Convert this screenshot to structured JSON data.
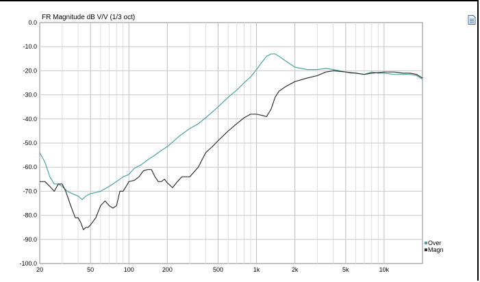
{
  "chart_data": {
    "type": "line",
    "title": "FR Magnitude dB V/V (1/3 oct)",
    "xscale": "log",
    "xlim": [
      20,
      20000
    ],
    "ylim": [
      -100,
      0
    ],
    "grid": true,
    "legend_position": "bottom-right",
    "x_tick_labels": [
      {
        "value": 20,
        "label": "20"
      },
      {
        "value": 50,
        "label": "50"
      },
      {
        "value": 100,
        "label": "100"
      },
      {
        "value": 200,
        "label": "200"
      },
      {
        "value": 500,
        "label": "500"
      },
      {
        "value": 1000,
        "label": "1k"
      },
      {
        "value": 2000,
        "label": "2k"
      },
      {
        "value": 5000,
        "label": "5k"
      },
      {
        "value": 10000,
        "label": "10k"
      }
    ],
    "y_tick_labels": [
      {
        "value": 0,
        "label": "0.0"
      },
      {
        "value": -10,
        "label": "-10.0"
      },
      {
        "value": -20,
        "label": "-20.0"
      },
      {
        "value": -30,
        "label": "-30.0"
      },
      {
        "value": -40,
        "label": "-40.0"
      },
      {
        "value": -50,
        "label": "-50.0"
      },
      {
        "value": -60,
        "label": "-60.0"
      },
      {
        "value": -70,
        "label": "-70.0"
      },
      {
        "value": -80,
        "label": "-80.0"
      },
      {
        "value": -90,
        "label": "-90.0"
      },
      {
        "value": -100,
        "label": "-100.0"
      }
    ],
    "series": [
      {
        "name": "Over",
        "color": "#4aa3a0",
        "x": [
          20,
          22,
          24,
          26,
          28,
          30,
          33,
          36,
          40,
          43,
          46,
          50,
          55,
          60,
          70,
          80,
          90,
          100,
          110,
          125,
          140,
          160,
          180,
          200,
          250,
          300,
          350,
          400,
          500,
          600,
          700,
          800,
          900,
          1000,
          1100,
          1200,
          1300,
          1400,
          1500,
          1700,
          2000,
          2500,
          3000,
          3500,
          4000,
          4500,
          5000,
          5500,
          6000,
          7000,
          8000,
          9000,
          10000,
          12000,
          14000,
          16000,
          18000,
          20000
        ],
        "y": [
          -54,
          -58,
          -64,
          -67,
          -67,
          -68,
          -70,
          -71,
          -72,
          -73.5,
          -72,
          -71,
          -70.5,
          -70,
          -68,
          -66,
          -64,
          -63,
          -60.5,
          -59,
          -57,
          -55,
          -53,
          -51.5,
          -47,
          -44,
          -42,
          -39.5,
          -35,
          -31,
          -28,
          -25,
          -22.5,
          -19.5,
          -16.5,
          -14,
          -13,
          -13,
          -14,
          -16,
          -18.5,
          -19.5,
          -19.5,
          -19,
          -19.5,
          -20,
          -20.5,
          -21,
          -21,
          -21.5,
          -20.5,
          -21,
          -21,
          -21.5,
          -21.5,
          -21.5,
          -22,
          -23.5
        ]
      },
      {
        "name": "Magn",
        "color": "#303030",
        "x": [
          20,
          22,
          24,
          26,
          28,
          30,
          32,
          35,
          38,
          40,
          42,
          44,
          46,
          48,
          50,
          55,
          60,
          65,
          70,
          75,
          80,
          85,
          90,
          95,
          100,
          110,
          120,
          130,
          140,
          150,
          160,
          170,
          180,
          190,
          200,
          220,
          240,
          260,
          300,
          350,
          400,
          450,
          500,
          600,
          700,
          800,
          900,
          1000,
          1100,
          1200,
          1300,
          1400,
          1500,
          1700,
          2000,
          2500,
          3000,
          3500,
          4000,
          5000,
          6000,
          7000,
          8000,
          10000,
          12000,
          14000,
          16000,
          18000,
          20000
        ],
        "y": [
          -66,
          -66,
          -68,
          -70,
          -67,
          -67,
          -70,
          -76,
          -81,
          -81,
          -83,
          -86,
          -85,
          -85,
          -84,
          -81,
          -76,
          -74,
          -76,
          -77,
          -76,
          -70,
          -70,
          -68,
          -66,
          -65.5,
          -64,
          -61.5,
          -61,
          -61,
          -64,
          -66,
          -66,
          -65,
          -66.5,
          -68.5,
          -66,
          -64,
          -64,
          -60,
          -54,
          -51.5,
          -49,
          -45,
          -42,
          -39.5,
          -38,
          -38,
          -38.5,
          -39,
          -36,
          -31,
          -28.5,
          -26.5,
          -24.5,
          -23,
          -22,
          -20.5,
          -20,
          -20.5,
          -21,
          -21.5,
          -21,
          -20.5,
          -20.5,
          -21,
          -21,
          -21.5,
          -23
        ]
      }
    ]
  },
  "icons": {
    "document": "document-icon"
  }
}
